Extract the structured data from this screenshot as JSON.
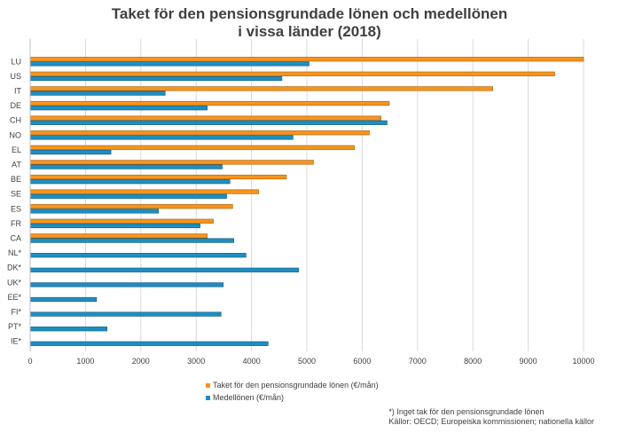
{
  "chart_data": {
    "type": "bar",
    "orientation": "horizontal",
    "title_line1": "Taket för den pensionsgrundade lönen och medellönen",
    "title_line2": "i vissa länder (2018)",
    "categories": [
      "LU",
      "US",
      "IT",
      "DE",
      "CH",
      "NO",
      "EL",
      "AT",
      "BE",
      "SE",
      "ES",
      "FR",
      "CA",
      "NL*",
      "DK*",
      "UK*",
      "EE*",
      "FI*",
      "PT*",
      "IE*"
    ],
    "series": [
      {
        "name": "Taket för den pensionsgrundade lönen (€/mån)",
        "color": "#F7941D",
        "values": [
          10000,
          9480,
          8360,
          6490,
          6340,
          6130,
          5860,
          5120,
          4630,
          4130,
          3660,
          3310,
          3200,
          null,
          null,
          null,
          null,
          null,
          null,
          null
        ]
      },
      {
        "name": "Medellönen (€/mån)",
        "color": "#1F8DC1",
        "values": [
          5040,
          4550,
          2440,
          3200,
          6450,
          4750,
          1460,
          3470,
          3610,
          3550,
          2320,
          3070,
          3680,
          3900,
          4850,
          3490,
          1200,
          3450,
          1390,
          4300
        ]
      }
    ],
    "x_ticks": [
      0,
      1000,
      2000,
      3000,
      4000,
      5000,
      6000,
      7000,
      8000,
      9000,
      10000
    ],
    "xlim": [
      0,
      10000
    ],
    "grid": true,
    "legend_position": "bottom",
    "footnote_line1": "*) Inget tak för den pensionsgrundade lönen",
    "footnote_line2": "Källor: OECD; Europeiska kommissionen; nationella källor"
  }
}
